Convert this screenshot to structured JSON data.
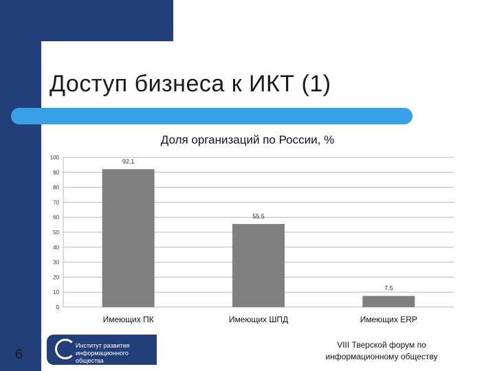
{
  "slide": {
    "title": "Доступ бизнеса к ИКТ (1)",
    "page_number": "6",
    "logo_text_line1": "Институт развития",
    "logo_text_line2": "информационного общества",
    "footer_line1": "VIII Тверской форум по",
    "footer_line2": "информационному обществу",
    "colors": {
      "brand_dark": "#223f7a",
      "accent": "#3aa0ea",
      "bar": "#808080"
    }
  },
  "chart_data": {
    "type": "bar",
    "title": "Доля организаций по России, %",
    "categories": [
      "Имеющих ПК",
      "Имеющих ШПД",
      "Имеющих ERP"
    ],
    "values": [
      92.1,
      55.5,
      7.5
    ],
    "value_labels": [
      "92.1",
      "55.5",
      "7.5"
    ],
    "ylim": [
      0,
      100
    ],
    "yticks": [
      0,
      10,
      20,
      30,
      40,
      50,
      60,
      70,
      80,
      90,
      100
    ],
    "grid": true,
    "xlabel": "",
    "ylabel": ""
  }
}
